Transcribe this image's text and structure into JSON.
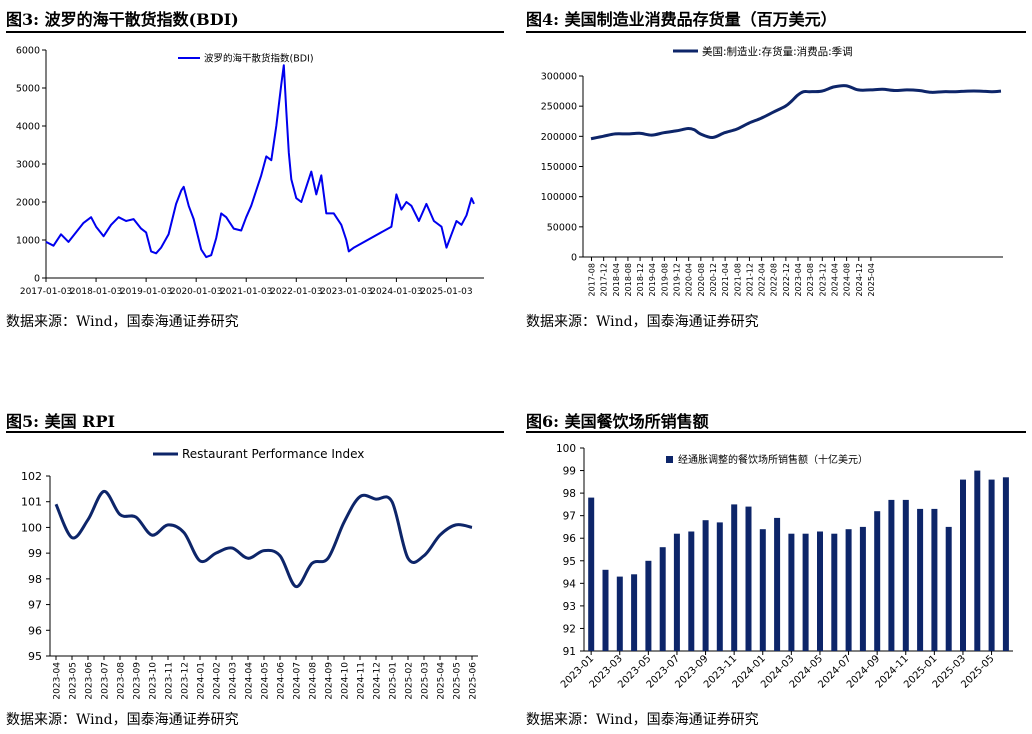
{
  "panels": [
    {
      "title": "图3:  波罗的海干散货指数(BDI)",
      "source": "数据来源：Wind，国泰海通证券研究"
    },
    {
      "title": "图4:  美国制造业消费品存货量（百万美元）",
      "source": "数据来源：Wind，国泰海通证券研究"
    },
    {
      "title": "图5:  美国 RPI",
      "source": "数据来源：Wind，国泰海通证券研究"
    },
    {
      "title": "图6:  美国餐饮场所销售额",
      "source": "数据来源：Wind，国泰海通证券研究"
    }
  ],
  "colors": {
    "bdi": "#0000ee",
    "navy": "#0d2569",
    "grid": "#cccccc"
  },
  "chart_data": [
    {
      "type": "line",
      "title": "波罗的海干散货指数(BDI)",
      "legend": "波罗的海干散货指数(BDI)",
      "ylim": [
        0,
        6000
      ],
      "yticks": [
        0,
        1000,
        2000,
        3000,
        4000,
        5000,
        6000
      ],
      "xticks": [
        "2017-01-03",
        "2018-01-03",
        "2019-01-03",
        "2020-01-03",
        "2021-01-03",
        "2022-01-03",
        "2023-01-03",
        "2024-01-03",
        "2025-01-03"
      ],
      "x": [
        2017.0,
        2017.15,
        2017.3,
        2017.45,
        2017.6,
        2017.75,
        2017.9,
        2018.0,
        2018.15,
        2018.3,
        2018.45,
        2018.6,
        2018.75,
        2018.9,
        2019.0,
        2019.1,
        2019.2,
        2019.3,
        2019.45,
        2019.6,
        2019.7,
        2019.75,
        2019.85,
        2019.95,
        2020.1,
        2020.2,
        2020.3,
        2020.4,
        2020.5,
        2020.6,
        2020.75,
        2020.9,
        2021.0,
        2021.1,
        2021.2,
        2021.3,
        2021.4,
        2021.5,
        2021.6,
        2021.7,
        2021.75,
        2021.8,
        2021.85,
        2021.9,
        2022.0,
        2022.1,
        2022.2,
        2022.3,
        2022.4,
        2022.5,
        2022.6,
        2022.75,
        2022.9,
        2023.0,
        2023.05,
        2023.15,
        2023.9,
        2024.0,
        2024.1,
        2024.2,
        2024.3,
        2024.45,
        2024.6,
        2024.75,
        2024.9,
        2025.0,
        2025.1,
        2025.2,
        2025.3,
        2025.4,
        2025.5,
        2025.55
      ],
      "values": [
        950,
        850,
        1150,
        950,
        1200,
        1450,
        1600,
        1350,
        1100,
        1400,
        1600,
        1500,
        1550,
        1300,
        1200,
        700,
        650,
        800,
        1150,
        1950,
        2300,
        2400,
        1900,
        1550,
        750,
        550,
        600,
        1050,
        1700,
        1600,
        1300,
        1250,
        1600,
        1900,
        2300,
        2700,
        3200,
        3100,
        4000,
        5100,
        5600,
        4400,
        3300,
        2600,
        2100,
        2000,
        2400,
        2800,
        2200,
        2700,
        1700,
        1700,
        1400,
        1000,
        700,
        800,
        1350,
        2200,
        1800,
        2000,
        1900,
        1500,
        1950,
        1500,
        1350,
        800,
        1150,
        1500,
        1400,
        1650,
        2100,
        1950
      ]
    },
    {
      "type": "line",
      "title": "美国制造业消费品存货量（百万美元）",
      "legend": "美国:制造业:存货量:消费品:季调",
      "ylim": [
        0,
        300000
      ],
      "yticks": [
        0,
        50000,
        100000,
        150000,
        200000,
        250000,
        300000
      ],
      "xticks": [
        "2017-08",
        "2017-12",
        "2018-04",
        "2018-08",
        "2018-12",
        "2019-04",
        "2019-08",
        "2019-12",
        "2020-04",
        "2020-08",
        "2020-12",
        "2021-04",
        "2021-08",
        "2021-12",
        "2022-04",
        "2022-08",
        "2022-12",
        "2023-04",
        "2023-08",
        "2023-12",
        "2024-04",
        "2024-08",
        "2024-12",
        "2025-04"
      ],
      "x": [
        0,
        4,
        8,
        12,
        16,
        20,
        24,
        28,
        30,
        32,
        34,
        36,
        40,
        44,
        48,
        52,
        56,
        60,
        64,
        66,
        68,
        70,
        72,
        76,
        80,
        84,
        88,
        92,
        96,
        100,
        104,
        108,
        112,
        116,
        120,
        124,
        128,
        132,
        135
      ],
      "values": [
        196000,
        200000,
        204000,
        204000,
        205000,
        202000,
        206000,
        209000,
        211000,
        213000,
        211000,
        204000,
        198000,
        206000,
        212000,
        222000,
        230000,
        240000,
        250000,
        258000,
        268000,
        274000,
        274000,
        275000,
        282000,
        284000,
        277000,
        277000,
        278000,
        276000,
        277000,
        276000,
        273000,
        274000,
        274000,
        275000,
        275000,
        274000,
        275000
      ]
    },
    {
      "type": "line",
      "title": "美国 RPI",
      "legend": "Restaurant Performance Index",
      "ylim": [
        95,
        102
      ],
      "yticks": [
        95,
        96,
        97,
        98,
        99,
        100,
        101,
        102
      ],
      "xticks": [
        "2023-04",
        "2023-05",
        "2023-06",
        "2023-07",
        "2023-08",
        "2023-09",
        "2023-10",
        "2023-11",
        "2023-12",
        "2024-01",
        "2024-02",
        "2024-03",
        "2024-04",
        "2024-05",
        "2024-06",
        "2024-07",
        "2024-08",
        "2024-09",
        "2024-10",
        "2024-11",
        "2024-12",
        "2025-01",
        "2025-02",
        "2025-03",
        "2025-04",
        "2025-05",
        "2025-06"
      ],
      "values": [
        100.9,
        99.6,
        100.3,
        101.4,
        100.5,
        100.4,
        99.7,
        100.1,
        99.8,
        98.7,
        99.0,
        99.2,
        98.8,
        99.1,
        98.9,
        97.7,
        98.6,
        98.8,
        100.2,
        101.2,
        101.1,
        101.0,
        98.8,
        98.9,
        99.7,
        100.1,
        100.0
      ]
    },
    {
      "type": "bar",
      "title": "美国餐饮场所销售额",
      "legend": "经通胀调整的餐饮场所销售额（十亿美元）",
      "ylim": [
        91,
        100
      ],
      "yticks": [
        91,
        92,
        93,
        94,
        95,
        96,
        97,
        98,
        99,
        100
      ],
      "xticks": [
        "2023-01",
        "2023-03",
        "2023-05",
        "2023-07",
        "2023-09",
        "2023-11",
        "2024-01",
        "2024-03",
        "2024-05",
        "2024-07",
        "2024-09",
        "2024-11",
        "2025-01",
        "2025-03",
        "2025-05"
      ],
      "values": [
        97.8,
        94.6,
        94.3,
        94.4,
        95.0,
        95.6,
        96.2,
        96.3,
        96.8,
        96.7,
        97.5,
        97.4,
        96.4,
        96.9,
        96.2,
        96.2,
        96.3,
        96.2,
        96.4,
        96.5,
        97.2,
        97.7,
        97.7,
        97.3,
        97.3,
        96.5,
        98.6,
        99.0,
        98.6,
        98.7
      ]
    }
  ]
}
